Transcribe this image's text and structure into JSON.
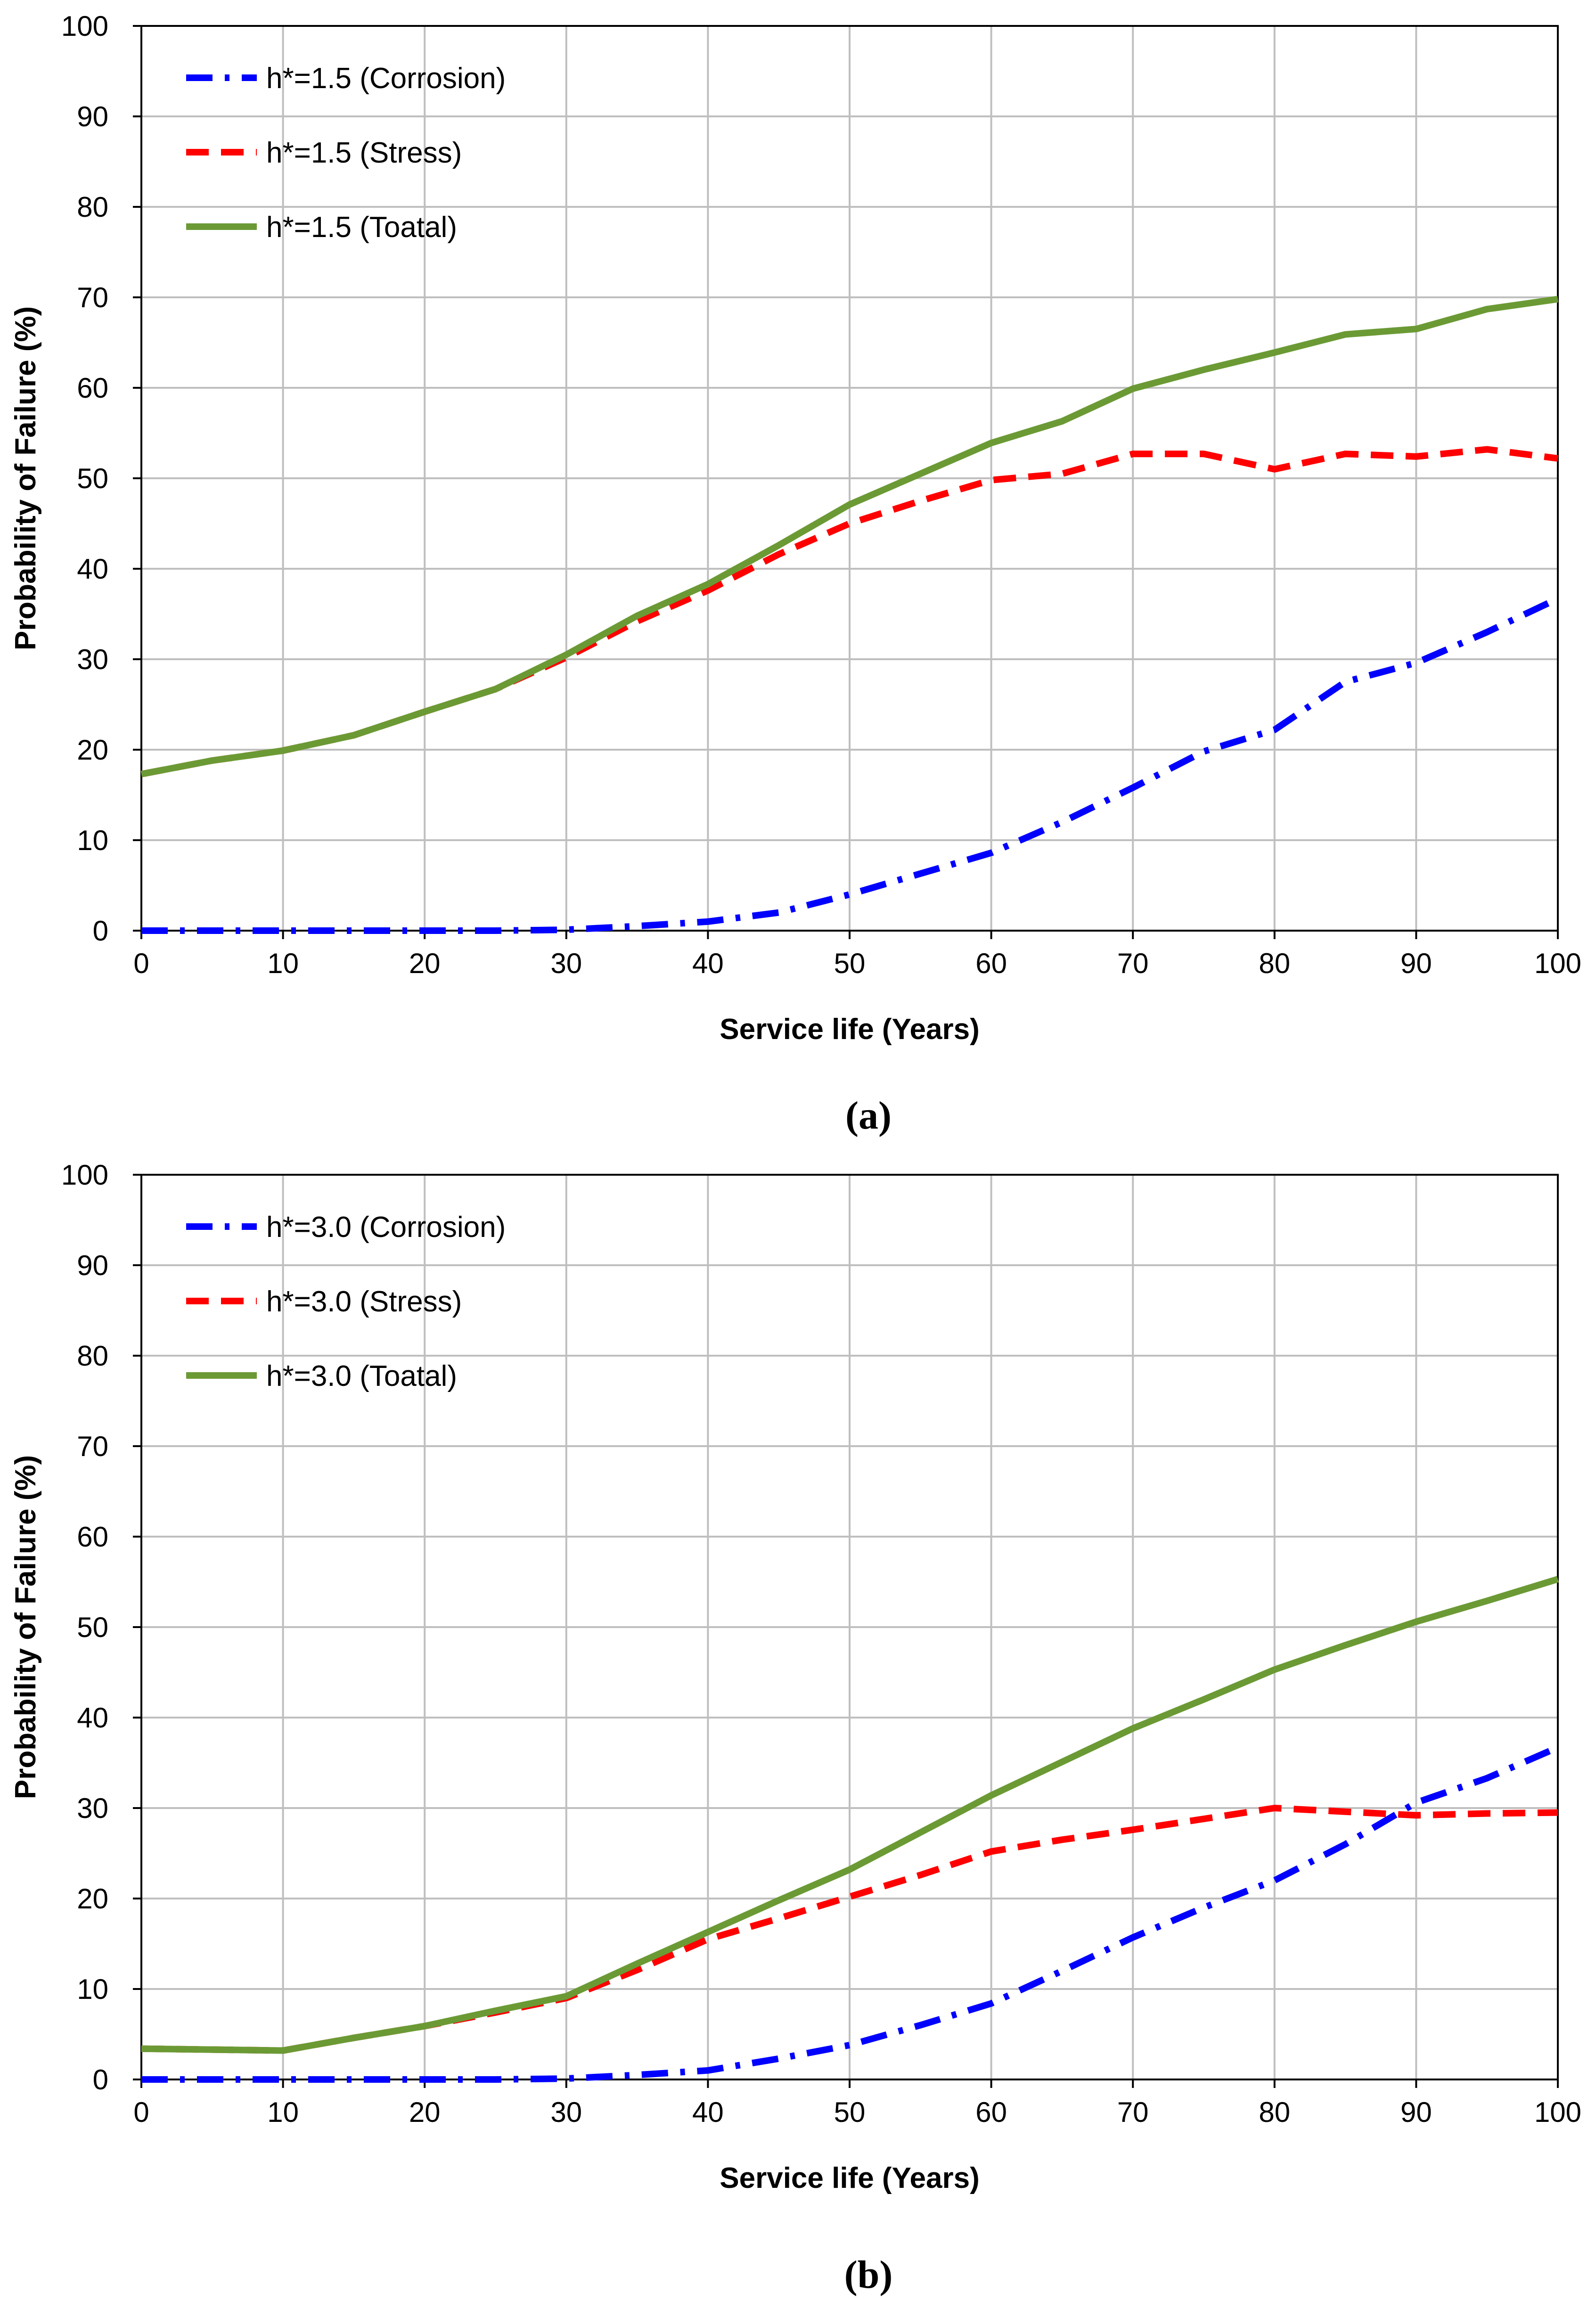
{
  "chart_data": [
    {
      "id": "a",
      "type": "line",
      "caption": "(a)",
      "caption_letter": "a",
      "xlabel": "Service life (Years)",
      "ylabel": "Probability of Failure (%)",
      "xlim": [
        0,
        100
      ],
      "ylim": [
        0,
        100
      ],
      "xticks": [
        0,
        10,
        20,
        30,
        40,
        50,
        60,
        70,
        80,
        90,
        100
      ],
      "yticks": [
        0,
        10,
        20,
        30,
        40,
        50,
        60,
        70,
        80,
        90,
        100
      ],
      "grid": true,
      "legend_position": "top-left",
      "series": [
        {
          "name": "h*=1.5 (Corrosion)",
          "color": "#0000ff",
          "style": "dash-dot",
          "x": [
            0,
            5,
            10,
            15,
            20,
            25,
            30,
            35,
            40,
            45,
            50,
            55,
            60,
            65,
            70,
            75,
            80,
            85,
            90,
            95,
            100
          ],
          "y": [
            0,
            0,
            0,
            0,
            0,
            0,
            0.1,
            0.5,
            1.0,
            2.0,
            4.0,
            6.3,
            8.6,
            12.0,
            15.8,
            19.8,
            22.2,
            27.5,
            29.6,
            33.0,
            36.7
          ]
        },
        {
          "name": "h*=1.5 (Stress)",
          "color": "#ff0000",
          "style": "dash",
          "x": [
            0,
            5,
            10,
            15,
            20,
            25,
            30,
            35,
            40,
            45,
            50,
            55,
            60,
            65,
            70,
            75,
            80,
            85,
            90,
            95,
            100
          ],
          "y": [
            17.3,
            18.8,
            19.9,
            21.6,
            24.2,
            26.7,
            30.2,
            34.2,
            37.6,
            41.6,
            45.0,
            47.5,
            49.8,
            50.5,
            52.7,
            52.7,
            51.0,
            52.7,
            52.4,
            53.2,
            52.2
          ]
        },
        {
          "name": "h*=1.5 (Toatal)",
          "color": "#6b9a35",
          "style": "solid",
          "x": [
            0,
            5,
            10,
            15,
            20,
            25,
            30,
            35,
            40,
            45,
            50,
            55,
            60,
            65,
            70,
            75,
            80,
            85,
            90,
            95,
            100
          ],
          "y": [
            17.3,
            18.8,
            19.9,
            21.6,
            24.2,
            26.7,
            30.5,
            34.8,
            38.3,
            42.6,
            47.1,
            50.5,
            53.9,
            56.3,
            59.9,
            62.0,
            63.9,
            65.9,
            66.5,
            68.7,
            69.8
          ]
        }
      ]
    },
    {
      "id": "b",
      "type": "line",
      "caption": "(b)",
      "caption_letter": "b",
      "xlabel": "Service life (Years)",
      "ylabel": "Probability of Failure (%)",
      "xlim": [
        0,
        100
      ],
      "ylim": [
        0,
        100
      ],
      "xticks": [
        0,
        10,
        20,
        30,
        40,
        50,
        60,
        70,
        80,
        90,
        100
      ],
      "yticks": [
        0,
        10,
        20,
        30,
        40,
        50,
        60,
        70,
        80,
        90,
        100
      ],
      "grid": true,
      "legend_position": "top-left",
      "series": [
        {
          "name": "h*=3.0 (Corrosion)",
          "color": "#0000ff",
          "style": "dash-dot",
          "x": [
            0,
            5,
            10,
            15,
            20,
            25,
            30,
            35,
            40,
            45,
            50,
            55,
            60,
            65,
            70,
            75,
            80,
            85,
            90,
            95,
            100
          ],
          "y": [
            0,
            0,
            0,
            0,
            0,
            0,
            0.1,
            0.5,
            1.0,
            2.3,
            3.8,
            6.0,
            8.4,
            12.0,
            15.7,
            19.0,
            22.0,
            26.0,
            30.6,
            33.3,
            36.7
          ]
        },
        {
          "name": "h*=3.0 (Stress)",
          "color": "#ff0000",
          "style": "dash",
          "x": [
            0,
            5,
            10,
            15,
            20,
            25,
            30,
            35,
            40,
            45,
            50,
            55,
            60,
            65,
            70,
            75,
            80,
            85,
            90,
            95,
            100
          ],
          "y": [
            3.4,
            3.3,
            3.2,
            4.6,
            5.9,
            7.4,
            9.0,
            12.1,
            15.5,
            17.8,
            20.2,
            22.6,
            25.2,
            26.5,
            27.6,
            28.8,
            30.0,
            29.6,
            29.2,
            29.4,
            29.5
          ]
        },
        {
          "name": "h*=3.0 (Toatal)",
          "color": "#6b9a35",
          "style": "solid",
          "x": [
            0,
            5,
            10,
            15,
            20,
            25,
            30,
            35,
            40,
            45,
            50,
            55,
            60,
            65,
            70,
            75,
            80,
            85,
            90,
            95,
            100
          ],
          "y": [
            3.4,
            3.3,
            3.2,
            4.6,
            5.9,
            7.6,
            9.2,
            12.8,
            16.3,
            19.8,
            23.2,
            27.3,
            31.4,
            35.1,
            38.8,
            42.0,
            45.3,
            48.0,
            50.6,
            52.9,
            55.3
          ]
        }
      ]
    }
  ]
}
